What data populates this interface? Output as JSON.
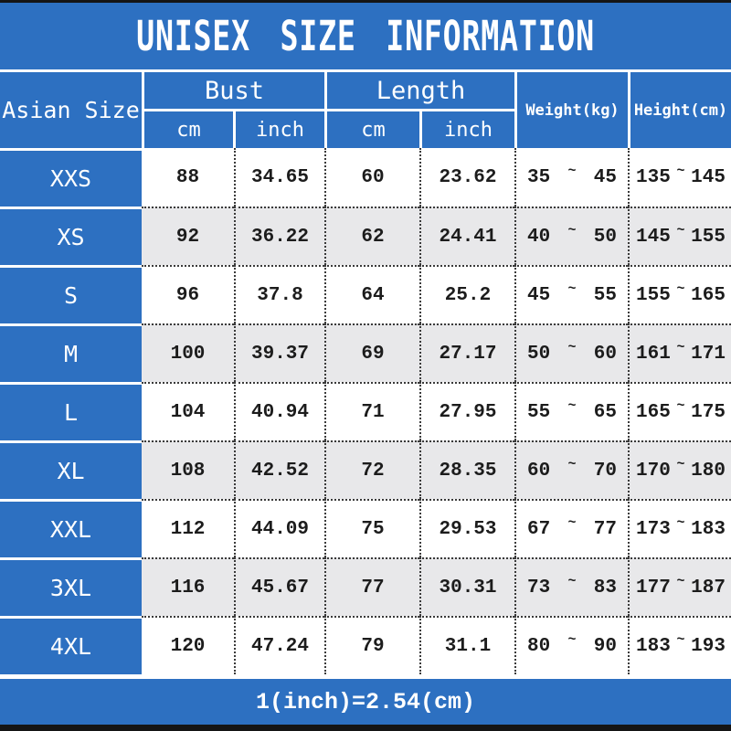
{
  "title": "UNISEX SIZE INFORMATION",
  "footer_note": "1(inch)=2.54(cm)",
  "colors": {
    "accent_blue": "#2d70c1",
    "alt_row_grey": "#e8e8ea",
    "text_dark": "#1c1c1c",
    "border_black": "#151515",
    "separator_white": "#ffffff"
  },
  "table": {
    "corner_label": "Asian Size",
    "tilde": "~",
    "groups": [
      {
        "label": "Bust",
        "sub": [
          "cm",
          "inch"
        ]
      },
      {
        "label": "Length",
        "sub": [
          "cm",
          "inch"
        ]
      }
    ],
    "weight_label": "Weight(kg)",
    "height_label": "Height(cm)",
    "rows": [
      {
        "size": "XXS",
        "bust_cm": "88",
        "bust_inch": "34.65",
        "length_cm": "60",
        "length_inch": "23.62",
        "weight_min": "35",
        "weight_max": "45",
        "height_min": "135",
        "height_max": "145"
      },
      {
        "size": "XS",
        "bust_cm": "92",
        "bust_inch": "36.22",
        "length_cm": "62",
        "length_inch": "24.41",
        "weight_min": "40",
        "weight_max": "50",
        "height_min": "145",
        "height_max": "155"
      },
      {
        "size": "S",
        "bust_cm": "96",
        "bust_inch": "37.8",
        "length_cm": "64",
        "length_inch": "25.2",
        "weight_min": "45",
        "weight_max": "55",
        "height_min": "155",
        "height_max": "165"
      },
      {
        "size": "M",
        "bust_cm": "100",
        "bust_inch": "39.37",
        "length_cm": "69",
        "length_inch": "27.17",
        "weight_min": "50",
        "weight_max": "60",
        "height_min": "161",
        "height_max": "171"
      },
      {
        "size": "L",
        "bust_cm": "104",
        "bust_inch": "40.94",
        "length_cm": "71",
        "length_inch": "27.95",
        "weight_min": "55",
        "weight_max": "65",
        "height_min": "165",
        "height_max": "175"
      },
      {
        "size": "XL",
        "bust_cm": "108",
        "bust_inch": "42.52",
        "length_cm": "72",
        "length_inch": "28.35",
        "weight_min": "60",
        "weight_max": "70",
        "height_min": "170",
        "height_max": "180"
      },
      {
        "size": "XXL",
        "bust_cm": "112",
        "bust_inch": "44.09",
        "length_cm": "75",
        "length_inch": "29.53",
        "weight_min": "67",
        "weight_max": "77",
        "height_min": "173",
        "height_max": "183"
      },
      {
        "size": "3XL",
        "bust_cm": "116",
        "bust_inch": "45.67",
        "length_cm": "77",
        "length_inch": "30.31",
        "weight_min": "73",
        "weight_max": "83",
        "height_min": "177",
        "height_max": "187"
      },
      {
        "size": "4XL",
        "bust_cm": "120",
        "bust_inch": "47.24",
        "length_cm": "79",
        "length_inch": "31.1",
        "weight_min": "80",
        "weight_max": "90",
        "height_min": "183",
        "height_max": "193"
      }
    ]
  },
  "chart_data": {
    "type": "table",
    "title": "UNISEX SIZE INFORMATION",
    "columns": [
      "Asian Size",
      "Bust cm",
      "Bust inch",
      "Length cm",
      "Length inch",
      "Weight(kg)",
      "Height(cm)"
    ],
    "rows": [
      [
        "XXS",
        88,
        34.65,
        60,
        23.62,
        "35~45",
        "135~145"
      ],
      [
        "XS",
        92,
        36.22,
        62,
        24.41,
        "40~50",
        "145~155"
      ],
      [
        "S",
        96,
        37.8,
        64,
        25.2,
        "45~55",
        "155~165"
      ],
      [
        "M",
        100,
        39.37,
        69,
        27.17,
        "50~60",
        "161~171"
      ],
      [
        "L",
        104,
        40.94,
        71,
        27.95,
        "55~65",
        "165~175"
      ],
      [
        "XL",
        108,
        42.52,
        72,
        28.35,
        "60~70",
        "170~180"
      ],
      [
        "XXL",
        112,
        44.09,
        75,
        29.53,
        "67~77",
        "173~183"
      ],
      [
        "3XL",
        116,
        45.67,
        77,
        30.31,
        "73~83",
        "177~187"
      ],
      [
        "4XL",
        120,
        47.24,
        79,
        31.1,
        "80~90",
        "183~193"
      ]
    ],
    "note": "1(inch)=2.54(cm)",
    "layout": "merged header: Bust and Length each split into cm/inch; alternating white/grey rows; blue header cells with white text"
  }
}
